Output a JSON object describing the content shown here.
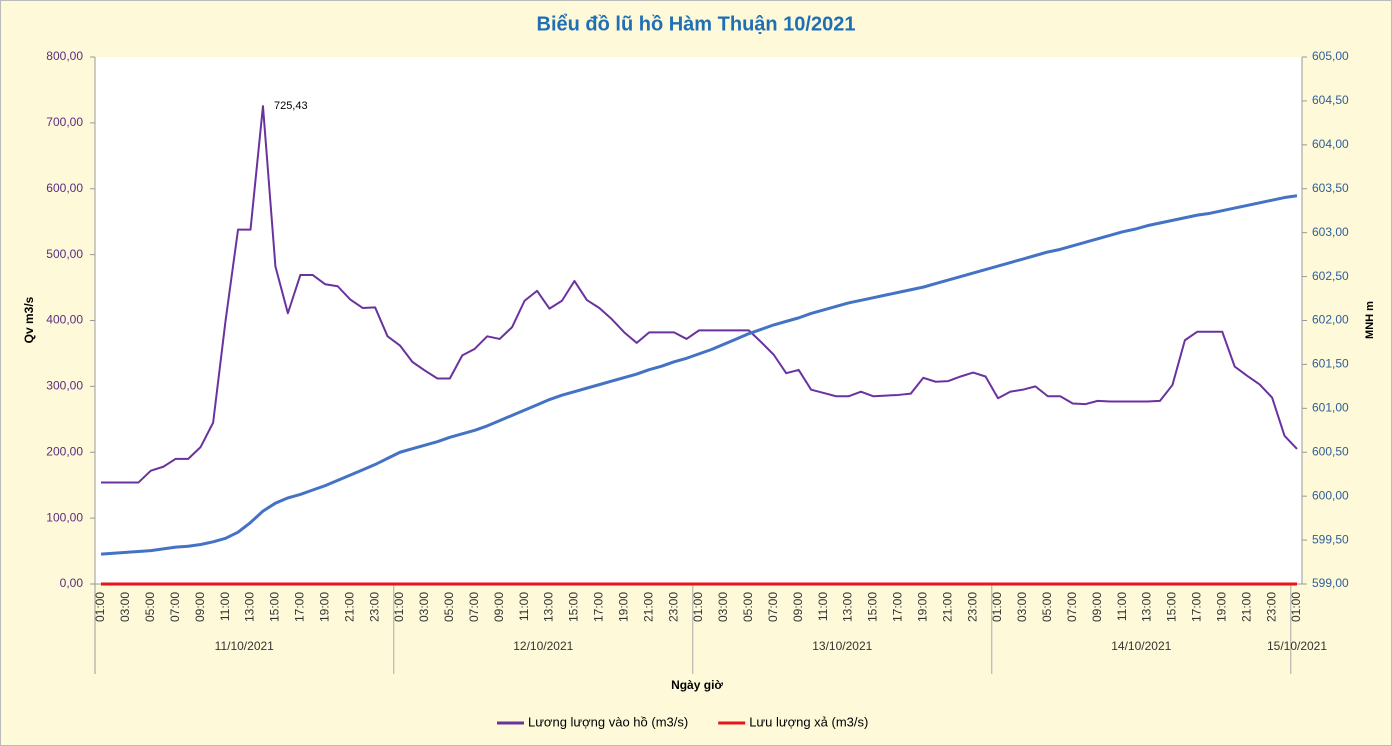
{
  "chart_data": {
    "type": "line",
    "title": "Biểu đồ lũ hồ Hàm Thuận 10/2021",
    "ylabel": "Qv m3/s",
    "y2label": "MNH m",
    "xlabel": "Ngày giờ",
    "categories": [
      "01:00",
      null,
      "03:00",
      null,
      "05:00",
      null,
      "07:00",
      null,
      "09:00",
      null,
      "11:00",
      null,
      "13:00",
      null,
      "15:00",
      null,
      "17:00",
      null,
      "19:00",
      null,
      "21:00",
      null,
      "23:00",
      null,
      "01:00",
      null,
      "03:00",
      null,
      "05:00",
      null,
      "07:00",
      null,
      "09:00",
      null,
      "11:00",
      null,
      "13:00",
      null,
      "15:00",
      null,
      "17:00",
      null,
      "19:00",
      null,
      "21:00",
      null,
      "23:00",
      null,
      "01:00",
      null,
      "03:00",
      null,
      "05:00",
      null,
      "07:00",
      null,
      "09:00",
      null,
      "11:00",
      null,
      "13:00",
      null,
      "15:00",
      null,
      "17:00",
      null,
      "19:00",
      null,
      "21:00",
      null,
      "23:00",
      null,
      "01:00",
      null,
      "03:00",
      null,
      "05:00",
      null,
      "07:00",
      null,
      "09:00",
      null,
      "11:00",
      null,
      "13:00",
      null,
      "15:00",
      null,
      "17:00",
      null,
      "19:00",
      null,
      "21:00",
      null,
      "23:00",
      null,
      "01:00"
    ],
    "category_groups": [
      "11/10/2021",
      "12/10/2021",
      "13/10/2021",
      "14/10/2021",
      "15/10/2021"
    ],
    "ylim": [
      0,
      800
    ],
    "yticks": [
      {
        "value": 0,
        "label": "0,00"
      },
      {
        "value": 100,
        "label": "100,00"
      },
      {
        "value": 200,
        "label": "200,00"
      },
      {
        "value": 300,
        "label": "300,00"
      },
      {
        "value": 400,
        "label": "400,00"
      },
      {
        "value": 500,
        "label": "500,00"
      },
      {
        "value": 600,
        "label": "600,00"
      },
      {
        "value": 700,
        "label": "700,00"
      },
      {
        "value": 800,
        "label": "800,00"
      }
    ],
    "y2lim": [
      599,
      605
    ],
    "y2ticks": [
      {
        "value": 599,
        "label": "599,00"
      },
      {
        "value": 599.5,
        "label": "599,50"
      },
      {
        "value": 600,
        "label": "600,00"
      },
      {
        "value": 600.5,
        "label": "600,50"
      },
      {
        "value": 601,
        "label": "601,00"
      },
      {
        "value": 601.5,
        "label": "601,50"
      },
      {
        "value": 602,
        "label": "602,00"
      },
      {
        "value": 602.5,
        "label": "602,50"
      },
      {
        "value": 603,
        "label": "603,00"
      },
      {
        "value": 603.5,
        "label": "603,50"
      },
      {
        "value": 604,
        "label": "604,00"
      },
      {
        "value": 604.5,
        "label": "604,50"
      },
      {
        "value": 605,
        "label": "605,00"
      }
    ],
    "series": [
      {
        "name": "Lương lượng vào hồ (m3/s)",
        "color": "#6a329f",
        "values": [
          154,
          154,
          154,
          154,
          172,
          178,
          190,
          190,
          208,
          245,
          400,
          538,
          538,
          725.43,
          482,
          411,
          469,
          469,
          455,
          452,
          432,
          419,
          420,
          376,
          362,
          337,
          324,
          312,
          312,
          347,
          357,
          376,
          372,
          390,
          430,
          445,
          418,
          430,
          460,
          431,
          419,
          402,
          382,
          366,
          382,
          382,
          382,
          372,
          385,
          385,
          385,
          385,
          385,
          367,
          348,
          320,
          325,
          295,
          290,
          285,
          285,
          292,
          285,
          286,
          287,
          289,
          313,
          307,
          308,
          315,
          321,
          315,
          282,
          292,
          295,
          300,
          285,
          285,
          274,
          273,
          278,
          277,
          277,
          277,
          277,
          278,
          302,
          370,
          383,
          383,
          383,
          330,
          316,
          303,
          283,
          225,
          205
        ],
        "value_labels": [
          null,
          null,
          null,
          null,
          null,
          null,
          null,
          null,
          null,
          null,
          null,
          null,
          null,
          "725,43",
          null,
          null,
          null,
          null,
          null,
          null,
          null,
          null,
          null,
          null,
          null,
          null,
          null,
          null,
          null,
          null,
          null,
          null,
          null,
          null,
          null,
          null,
          null,
          null,
          null,
          null,
          null,
          null,
          null,
          null,
          null,
          null,
          null,
          null,
          null,
          null,
          null,
          null,
          null,
          null,
          null,
          null,
          null,
          null,
          null,
          null,
          null,
          null,
          null,
          null,
          null,
          null,
          null,
          null,
          null,
          null,
          null,
          null,
          null,
          null,
          null,
          null,
          null,
          null,
          null,
          null,
          null,
          null,
          null,
          null,
          null,
          null,
          null,
          null,
          null,
          null,
          null,
          null,
          null,
          null,
          null,
          null,
          null
        ]
      },
      {
        "name": "Lưu lượng xả (m3/s)",
        "color": "#e8141b",
        "values": [
          0,
          0,
          0,
          0,
          0,
          0,
          0,
          0,
          0,
          0,
          0,
          0,
          0,
          0,
          0,
          0,
          0,
          0,
          0,
          0,
          0,
          0,
          0,
          0,
          0,
          0,
          0,
          0,
          0,
          0,
          0,
          0,
          0,
          0,
          0,
          0,
          0,
          0,
          0,
          0,
          0,
          0,
          0,
          0,
          0,
          0,
          0,
          0,
          0,
          0,
          0,
          0,
          0,
          0,
          0,
          0,
          0,
          0,
          0,
          0,
          0,
          0,
          0,
          0,
          0,
          0,
          0,
          0,
          0,
          0,
          0,
          0,
          0,
          0,
          0,
          0,
          0,
          0,
          0,
          0,
          0,
          0,
          0,
          0,
          0,
          0,
          0,
          0,
          0,
          0,
          0,
          0,
          0,
          0,
          0,
          0,
          0
        ]
      },
      {
        "color": "#4472c4",
        "axis": "y2",
        "values": [
          599.34,
          599.35,
          599.36,
          599.37,
          599.38,
          599.4,
          599.42,
          599.43,
          599.45,
          599.48,
          599.52,
          599.59,
          599.7,
          599.83,
          599.92,
          599.98,
          600.02,
          600.07,
          600.12,
          600.18,
          600.24,
          600.3,
          600.36,
          600.43,
          600.5,
          600.54,
          600.58,
          600.62,
          600.67,
          600.71,
          600.75,
          600.8,
          600.86,
          600.92,
          600.98,
          601.04,
          601.1,
          601.15,
          601.19,
          601.23,
          601.27,
          601.31,
          601.35,
          601.39,
          601.44,
          601.48,
          601.53,
          601.57,
          601.62,
          601.67,
          601.73,
          601.79,
          601.85,
          601.9,
          601.95,
          601.99,
          602.03,
          602.08,
          602.12,
          602.16,
          602.2,
          602.23,
          602.26,
          602.29,
          602.32,
          602.35,
          602.38,
          602.42,
          602.46,
          602.5,
          602.54,
          602.58,
          602.62,
          602.66,
          602.7,
          602.74,
          602.78,
          602.81,
          602.85,
          602.89,
          602.93,
          602.97,
          603.01,
          603.04,
          603.08,
          603.11,
          603.14,
          603.17,
          603.2,
          603.22,
          603.25,
          603.28,
          603.31,
          603.34,
          603.37,
          603.4,
          603.42
        ]
      }
    ]
  }
}
